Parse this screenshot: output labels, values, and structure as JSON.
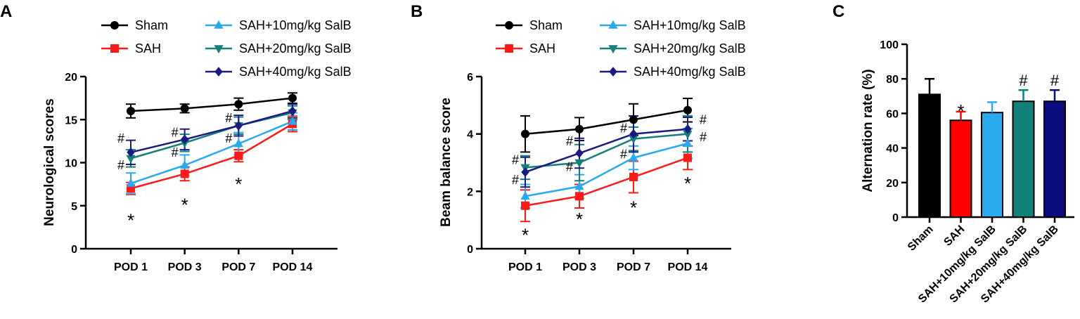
{
  "chart_data": [
    {
      "panel": "A",
      "type": "line",
      "ylabel": "Neurological scores",
      "xlabel": "",
      "ylim": [
        0,
        20
      ],
      "yticks": [
        0,
        5,
        10,
        15,
        20
      ],
      "categories": [
        "POD 1",
        "POD 3",
        "POD 7",
        "POD 14"
      ],
      "legend": [
        "Sham",
        "SAH",
        "SAH+10mg/kg SalB",
        "SAH+20mg/kg SalB",
        "SAH+40mg/kg SalB"
      ],
      "series": [
        {
          "name": "Sham",
          "color": "#000000",
          "marker": "circle",
          "values": [
            16.0,
            16.3,
            16.8,
            17.5
          ],
          "errors": [
            0.8,
            0.5,
            0.7,
            0.6
          ]
        },
        {
          "name": "SAH",
          "color": "#ff1a1a",
          "marker": "square",
          "values": [
            7.0,
            8.7,
            10.8,
            14.5
          ],
          "errors": [
            0.7,
            0.8,
            0.7,
            0.9
          ]
        },
        {
          "name": "SAH+10mg/kg SalB",
          "color": "#29aaef",
          "marker": "triangle-up",
          "values": [
            7.6,
            9.7,
            12.2,
            14.8
          ],
          "errors": [
            1.2,
            1.2,
            1.3,
            1.0
          ]
        },
        {
          "name": "SAH+20mg/kg SalB",
          "color": "#138079",
          "marker": "triangle-down",
          "values": [
            10.5,
            12.3,
            14.3,
            15.8
          ],
          "errors": [
            1.0,
            1.0,
            1.0,
            0.8
          ]
        },
        {
          "name": "SAH+40mg/kg SalB",
          "color": "#1a1a80",
          "marker": "diamond",
          "values": [
            11.2,
            12.7,
            14.3,
            16.0
          ],
          "errors": [
            1.4,
            1.2,
            1.2,
            0.8
          ]
        }
      ],
      "annotations": [
        {
          "text": "*",
          "category": 0,
          "y": 3.7
        },
        {
          "text": "*",
          "category": 1,
          "y": 5.5
        },
        {
          "text": "*",
          "category": 2,
          "y": 7.9
        },
        {
          "text": "#",
          "category": 0,
          "y": 12.8,
          "side": "left"
        },
        {
          "text": "#",
          "category": 0,
          "y": 9.7,
          "side": "left"
        },
        {
          "text": "#",
          "category": 1,
          "y": 13.5,
          "side": "left"
        },
        {
          "text": "#",
          "category": 1,
          "y": 11.2,
          "side": "left"
        },
        {
          "text": "#",
          "category": 2,
          "y": 15.2,
          "side": "left"
        },
        {
          "text": "#",
          "category": 2,
          "y": 12.8,
          "side": "left"
        }
      ]
    },
    {
      "panel": "B",
      "type": "line",
      "ylabel": "Beam balance score",
      "xlabel": "",
      "ylim": [
        0,
        6
      ],
      "yticks": [
        0,
        2,
        4,
        6
      ],
      "categories": [
        "POD 1",
        "POD 3",
        "POD 7",
        "POD 14"
      ],
      "legend": [
        "Sham",
        "SAH",
        "SAH+10mg/kg SalB",
        "SAH+20mg/kg SalB",
        "SAH+40mg/kg SalB"
      ],
      "series": [
        {
          "name": "Sham",
          "color": "#000000",
          "marker": "circle",
          "values": [
            4.0,
            4.17,
            4.5,
            4.83
          ],
          "errors": [
            0.63,
            0.4,
            0.55,
            0.41
          ]
        },
        {
          "name": "SAH",
          "color": "#ff1a1a",
          "marker": "square",
          "values": [
            1.5,
            1.83,
            2.5,
            3.17
          ],
          "errors": [
            0.55,
            0.41,
            0.55,
            0.41
          ]
        },
        {
          "name": "SAH+10mg/kg SalB",
          "color": "#29aaef",
          "marker": "triangle-up",
          "values": [
            1.83,
            2.17,
            3.17,
            3.67
          ],
          "errors": [
            0.41,
            0.41,
            0.41,
            0.52
          ]
        },
        {
          "name": "SAH+20mg/kg SalB",
          "color": "#138079",
          "marker": "triangle-down",
          "values": [
            2.83,
            3.0,
            3.83,
            4.0
          ],
          "errors": [
            0.41,
            0.63,
            0.41,
            0.63
          ]
        },
        {
          "name": "SAH+40mg/kg SalB",
          "color": "#1a1a80",
          "marker": "diamond",
          "values": [
            2.67,
            3.33,
            4.0,
            4.17
          ],
          "errors": [
            0.52,
            0.52,
            0.63,
            0.41
          ]
        }
      ],
      "annotations": [
        {
          "text": "*",
          "category": 0,
          "y": 0.6
        },
        {
          "text": "*",
          "category": 1,
          "y": 1.15
        },
        {
          "text": "*",
          "category": 2,
          "y": 1.55
        },
        {
          "text": "*",
          "category": 3,
          "y": 2.4
        },
        {
          "text": "#",
          "category": 0,
          "y": 3.1,
          "side": "left"
        },
        {
          "text": "#",
          "category": 0,
          "y": 2.4,
          "side": "left"
        },
        {
          "text": "#",
          "category": 1,
          "y": 3.75,
          "side": "left"
        },
        {
          "text": "#",
          "category": 1,
          "y": 2.85,
          "side": "left"
        },
        {
          "text": "#",
          "category": 2,
          "y": 4.2,
          "side": "left"
        },
        {
          "text": "#",
          "category": 2,
          "y": 3.3,
          "side": "left"
        },
        {
          "text": "#",
          "category": 3,
          "y": 4.5,
          "side": "right"
        },
        {
          "text": "#",
          "category": 3,
          "y": 3.9,
          "side": "right"
        }
      ]
    },
    {
      "panel": "C",
      "type": "bar",
      "ylabel": "Alternation rate (%)",
      "xlabel": "",
      "ylim": [
        0,
        100
      ],
      "yticks": [
        0,
        20,
        40,
        60,
        80,
        100
      ],
      "categories": [
        "Sham",
        "SAH",
        "SAH+10mg/kg SalB",
        "SAH+20mg/kg SalB",
        "SAH+40mg/kg SalB"
      ],
      "values": [
        71,
        56,
        60.5,
        67,
        67
      ],
      "errors": [
        9,
        5,
        6,
        6.5,
        6.5
      ],
      "colors": [
        "#000000",
        "#ff0000",
        "#29aaef",
        "#138079",
        "#0b0b80"
      ],
      "annotations": [
        {
          "text": "*",
          "index": 1
        },
        {
          "text": "#",
          "index": 3
        },
        {
          "text": "#",
          "index": 4
        }
      ]
    }
  ]
}
